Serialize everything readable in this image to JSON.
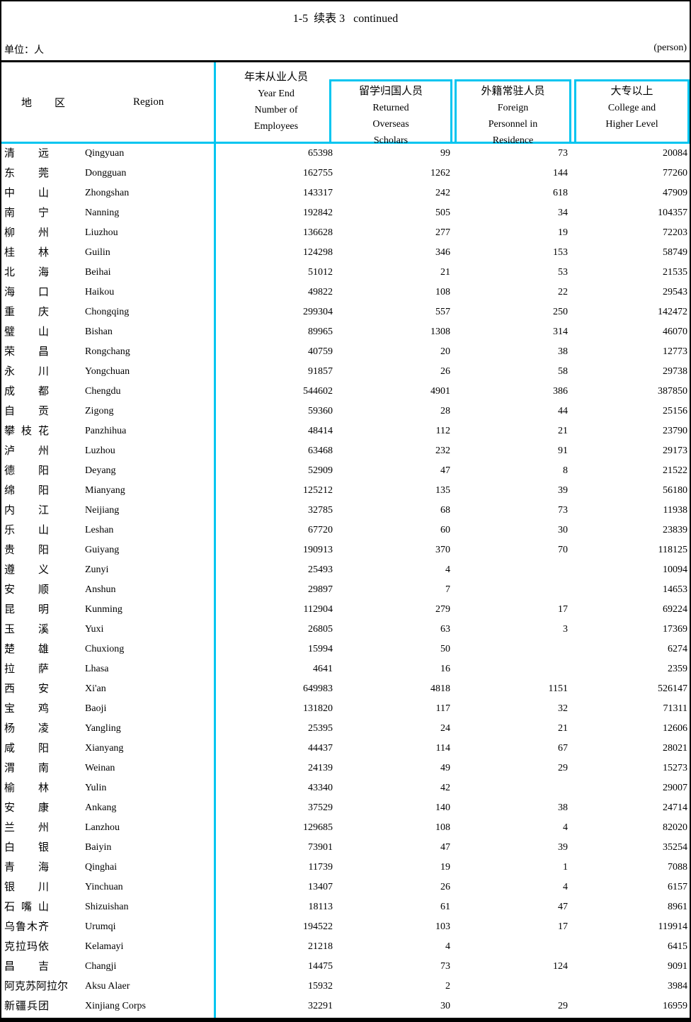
{
  "page": {
    "title": "1-5  续表 3   continued",
    "unit_label": "单位：人",
    "unit_note": "(person)"
  },
  "colors": {
    "accent": "#00c5f0"
  },
  "table": {
    "header": {
      "region_cn": "地区",
      "region_en": "Region",
      "col1": {
        "cn": "年末从业人员",
        "en_lines": [
          "Year End",
          "Number of",
          "Employees"
        ]
      },
      "col2": {
        "cn": "留学归国人员",
        "en_lines": [
          "Returned",
          "Overseas",
          "Scholars"
        ]
      },
      "col3": {
        "cn": "外籍常驻人员",
        "en_lines": [
          "Foreign",
          "Personnel in",
          "Residence"
        ]
      },
      "col4": {
        "cn": "大专以上",
        "en_lines": [
          "College and",
          "Higher Level"
        ]
      }
    },
    "rows": [
      {
        "cn": "清远",
        "en": "Qingyuan",
        "values": [
          "65398",
          "99",
          "73",
          "20084"
        ]
      },
      {
        "cn": "东莞",
        "en": "Dongguan",
        "values": [
          "162755",
          "1262",
          "144",
          "77260"
        ]
      },
      {
        "cn": "中山",
        "en": "Zhongshan",
        "values": [
          "143317",
          "242",
          "618",
          "47909"
        ]
      },
      {
        "cn": "南宁",
        "en": "Nanning",
        "values": [
          "192842",
          "505",
          "34",
          "104357"
        ]
      },
      {
        "cn": "柳州",
        "en": "Liuzhou",
        "values": [
          "136628",
          "277",
          "19",
          "72203"
        ]
      },
      {
        "cn": "桂林",
        "en": "Guilin",
        "values": [
          "124298",
          "346",
          "153",
          "58749"
        ]
      },
      {
        "cn": "北海",
        "en": "Beihai",
        "values": [
          "51012",
          "21",
          "53",
          "21535"
        ]
      },
      {
        "cn": "海口",
        "en": "Haikou",
        "values": [
          "49822",
          "108",
          "22",
          "29543"
        ]
      },
      {
        "cn": "重庆",
        "en": "Chongqing",
        "values": [
          "299304",
          "557",
          "250",
          "142472"
        ]
      },
      {
        "cn": "璧山",
        "en": "Bishan",
        "values": [
          "89965",
          "1308",
          "314",
          "46070"
        ]
      },
      {
        "cn": "荣昌",
        "en": "Rongchang",
        "values": [
          "40759",
          "20",
          "38",
          "12773"
        ]
      },
      {
        "cn": "永川",
        "en": "Yongchuan",
        "values": [
          "91857",
          "26",
          "58",
          "29738"
        ]
      },
      {
        "cn": "成都",
        "en": "Chengdu",
        "values": [
          "544602",
          "4901",
          "386",
          "387850"
        ]
      },
      {
        "cn": "自贡",
        "en": "Zigong",
        "values": [
          "59360",
          "28",
          "44",
          "25156"
        ]
      },
      {
        "cn": "攀枝花",
        "en": "Panzhihua",
        "values": [
          "48414",
          "112",
          "21",
          "23790"
        ]
      },
      {
        "cn": "泸州",
        "en": "Luzhou",
        "values": [
          "63468",
          "232",
          "91",
          "29173"
        ]
      },
      {
        "cn": "德阳",
        "en": "Deyang",
        "values": [
          "52909",
          "47",
          "8",
          "21522"
        ]
      },
      {
        "cn": "绵阳",
        "en": "Mianyang",
        "values": [
          "125212",
          "135",
          "39",
          "56180"
        ]
      },
      {
        "cn": "内江",
        "en": "Neijiang",
        "values": [
          "32785",
          "68",
          "73",
          "11938"
        ]
      },
      {
        "cn": "乐山",
        "en": "Leshan",
        "values": [
          "67720",
          "60",
          "30",
          "23839"
        ]
      },
      {
        "cn": "贵阳",
        "en": "Guiyang",
        "values": [
          "190913",
          "370",
          "70",
          "118125"
        ]
      },
      {
        "cn": "遵义",
        "en": "Zunyi",
        "values": [
          "25493",
          "4",
          "",
          "10094"
        ]
      },
      {
        "cn": "安顺",
        "en": "Anshun",
        "values": [
          "29897",
          "7",
          "",
          "14653"
        ]
      },
      {
        "cn": "昆明",
        "en": "Kunming",
        "values": [
          "112904",
          "279",
          "17",
          "69224"
        ]
      },
      {
        "cn": "玉溪",
        "en": "Yuxi",
        "values": [
          "26805",
          "63",
          "3",
          "17369"
        ]
      },
      {
        "cn": "楚雄",
        "en": "Chuxiong",
        "values": [
          "15994",
          "50",
          "",
          "6274"
        ]
      },
      {
        "cn": "拉萨",
        "en": "Lhasa",
        "values": [
          "4641",
          "16",
          "",
          "2359"
        ]
      },
      {
        "cn": "西安",
        "en": "Xi'an",
        "values": [
          "649983",
          "4818",
          "1151",
          "526147"
        ]
      },
      {
        "cn": "宝鸡",
        "en": "Baoji",
        "values": [
          "131820",
          "117",
          "32",
          "71311"
        ]
      },
      {
        "cn": "杨凌",
        "en": "Yangling",
        "values": [
          "25395",
          "24",
          "21",
          "12606"
        ]
      },
      {
        "cn": "咸阳",
        "en": "Xianyang",
        "values": [
          "44437",
          "114",
          "67",
          "28021"
        ]
      },
      {
        "cn": "渭南",
        "en": "Weinan",
        "values": [
          "24139",
          "49",
          "29",
          "15273"
        ]
      },
      {
        "cn": "榆林",
        "en": "Yulin",
        "values": [
          "43340",
          "42",
          "",
          "29007"
        ]
      },
      {
        "cn": "安康",
        "en": "Ankang",
        "values": [
          "37529",
          "140",
          "38",
          "24714"
        ]
      },
      {
        "cn": "兰州",
        "en": "Lanzhou",
        "values": [
          "129685",
          "108",
          "4",
          "82020"
        ]
      },
      {
        "cn": "白银",
        "en": "Baiyin",
        "values": [
          "73901",
          "47",
          "39",
          "35254"
        ]
      },
      {
        "cn": "青海",
        "en": "Qinghai",
        "values": [
          "11739",
          "19",
          "1",
          "7088"
        ]
      },
      {
        "cn": "银川",
        "en": "Yinchuan",
        "values": [
          "13407",
          "26",
          "4",
          "6157"
        ]
      },
      {
        "cn": "石嘴山",
        "en": "Shizuishan",
        "values": [
          "18113",
          "61",
          "47",
          "8961"
        ]
      },
      {
        "cn": "乌鲁木齐",
        "en": "Urumqi",
        "values": [
          "194522",
          "103",
          "17",
          "119914"
        ]
      },
      {
        "cn": "克拉玛依",
        "en": "Kelamayi",
        "values": [
          "21218",
          "4",
          "",
          "6415"
        ]
      },
      {
        "cn": "昌吉",
        "en": "Changji",
        "values": [
          "14475",
          "73",
          "124",
          "9091"
        ]
      },
      {
        "cn": "阿克苏阿拉尔",
        "en": "Aksu Alaer",
        "values": [
          "15932",
          "2",
          "",
          "3984"
        ]
      },
      {
        "cn": "新疆兵团",
        "en": "Xinjiang Corps",
        "values": [
          "32291",
          "30",
          "29",
          "16959"
        ]
      }
    ]
  }
}
